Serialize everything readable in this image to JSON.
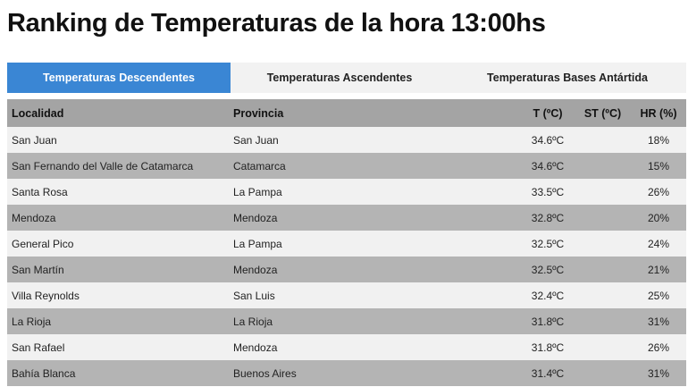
{
  "page": {
    "title": "Ranking de Temperaturas de la hora 13:00hs"
  },
  "tabs": [
    {
      "label": "Temperaturas Descendentes",
      "active": true
    },
    {
      "label": "Temperaturas Ascendentes",
      "active": false
    },
    {
      "label": "Temperaturas Bases Antártida",
      "active": false
    }
  ],
  "table": {
    "headers": {
      "localidad": "Localidad",
      "provincia": "Provincia",
      "t": "T (ºC)",
      "st": "ST (ºC)",
      "hr": "HR (%)"
    },
    "rows": [
      {
        "localidad": "San Juan",
        "provincia": "San Juan",
        "t": "34.6ºC",
        "st": "",
        "hr": "18%"
      },
      {
        "localidad": "San Fernando del Valle de Catamarca",
        "provincia": "Catamarca",
        "t": "34.6ºC",
        "st": "",
        "hr": "15%"
      },
      {
        "localidad": "Santa Rosa",
        "provincia": "La Pampa",
        "t": "33.5ºC",
        "st": "",
        "hr": "26%"
      },
      {
        "localidad": "Mendoza",
        "provincia": "Mendoza",
        "t": "32.8ºC",
        "st": "",
        "hr": "20%"
      },
      {
        "localidad": "General Pico",
        "provincia": "La Pampa",
        "t": "32.5ºC",
        "st": "",
        "hr": "24%"
      },
      {
        "localidad": "San Martín",
        "provincia": "Mendoza",
        "t": "32.5ºC",
        "st": "",
        "hr": "21%"
      },
      {
        "localidad": "Villa Reynolds",
        "provincia": "San Luis",
        "t": "32.4ºC",
        "st": "",
        "hr": "25%"
      },
      {
        "localidad": "La Rioja",
        "provincia": "La Rioja",
        "t": "31.8ºC",
        "st": "",
        "hr": "31%"
      },
      {
        "localidad": "San Rafael",
        "provincia": "Mendoza",
        "t": "31.8ºC",
        "st": "",
        "hr": "26%"
      },
      {
        "localidad": "Bahía Blanca",
        "provincia": "Buenos Aires",
        "t": "31.4ºC",
        "st": "",
        "hr": "31%"
      }
    ]
  },
  "colors": {
    "active_tab": "#3a86d4",
    "inactive_tab": "#f2f2f2",
    "header_row": "#a4a4a4",
    "row_light": "#f1f1f1",
    "row_dark": "#b4b4b4"
  }
}
